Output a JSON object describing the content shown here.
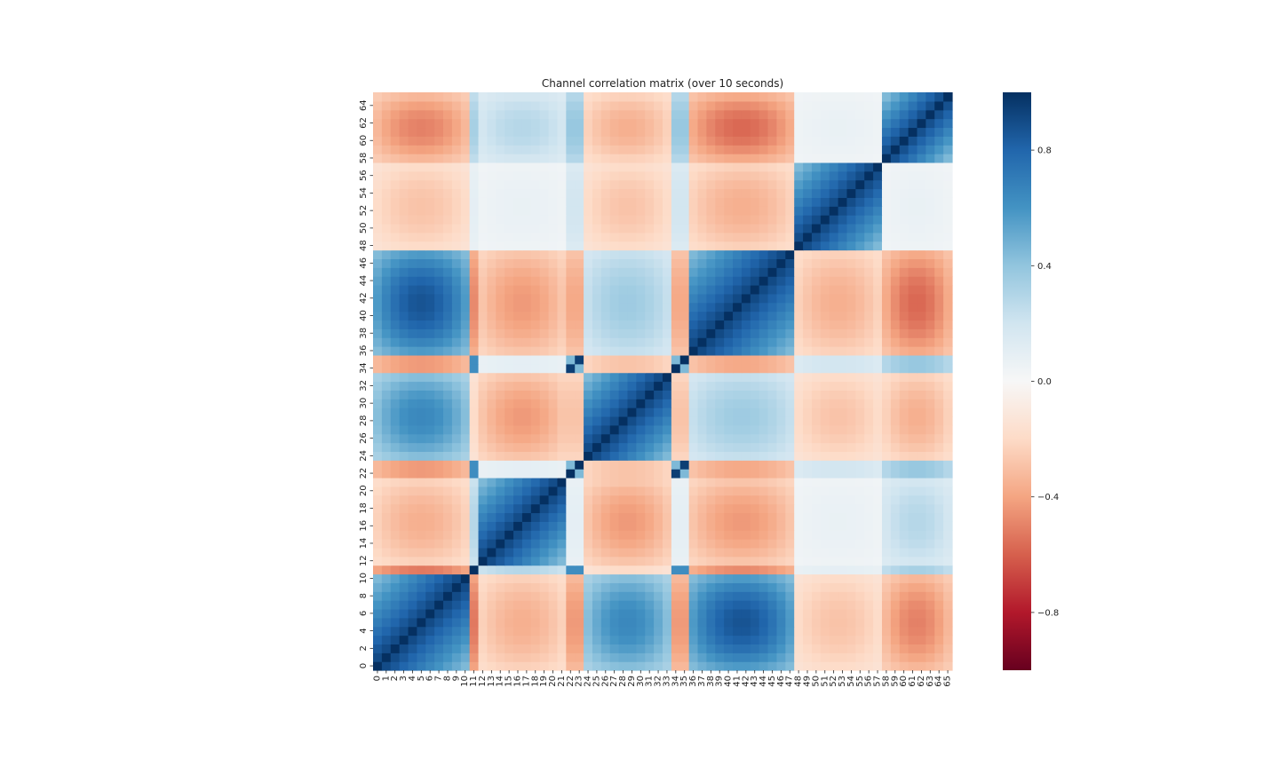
{
  "chart_data": {
    "type": "heatmap",
    "title": "Channel correlation matrix (over 10 seconds)",
    "xlabel": "",
    "ylabel": "",
    "n": 66,
    "x_tick_labels": [
      "0",
      "1",
      "2",
      "3",
      "4",
      "5",
      "6",
      "7",
      "8",
      "9",
      "10",
      "11",
      "12",
      "13",
      "14",
      "15",
      "16",
      "17",
      "18",
      "19",
      "20",
      "21",
      "22",
      "23",
      "24",
      "25",
      "26",
      "27",
      "28",
      "29",
      "30",
      "31",
      "32",
      "33",
      "34",
      "35",
      "36",
      "37",
      "38",
      "39",
      "40",
      "41",
      "42",
      "43",
      "44",
      "45",
      "46",
      "47",
      "48",
      "49",
      "50",
      "51",
      "52",
      "53",
      "54",
      "55",
      "56",
      "57",
      "58",
      "59",
      "60",
      "61",
      "62",
      "63",
      "64",
      "65"
    ],
    "y_tick_labels": [
      "0",
      "2",
      "4",
      "6",
      "8",
      "10",
      "12",
      "14",
      "16",
      "18",
      "20",
      "22",
      "24",
      "26",
      "28",
      "30",
      "32",
      "34",
      "36",
      "38",
      "40",
      "42",
      "44",
      "46",
      "48",
      "50",
      "52",
      "54",
      "56",
      "58",
      "60",
      "62",
      "64"
    ],
    "y_tick_values": [
      0,
      2,
      4,
      6,
      8,
      10,
      12,
      14,
      16,
      18,
      20,
      22,
      24,
      26,
      28,
      30,
      32,
      34,
      36,
      38,
      40,
      42,
      44,
      46,
      48,
      50,
      52,
      54,
      56,
      58,
      60,
      62,
      64
    ],
    "value_range": [
      -1,
      1
    ],
    "colormap": "RdBu",
    "colorbar": {
      "ticks": [
        -0.8,
        -0.4,
        0.0,
        0.4,
        0.8
      ],
      "tick_labels": [
        "−0.8",
        "−0.4",
        "0.0",
        "0.4",
        "0.8"
      ]
    },
    "channel_groups": [
      {
        "channels": [
          0,
          10
        ],
        "group": 0
      },
      {
        "channels": [
          11,
          11
        ],
        "group": 1
      },
      {
        "channels": [
          12,
          21
        ],
        "group": 2
      },
      {
        "channels": [
          22,
          23
        ],
        "group": 3
      },
      {
        "channels": [
          24,
          33
        ],
        "group": 4
      },
      {
        "channels": [
          34,
          35
        ],
        "group": 3
      },
      {
        "channels": [
          36,
          47
        ],
        "group": 5
      },
      {
        "channels": [
          48,
          57
        ],
        "group": 6
      },
      {
        "channels": [
          58,
          65
        ],
        "group": 7
      }
    ],
    "within_group_correlation": {
      "near": 0.95,
      "far": 0.45
    },
    "between_group_correlation": [
      [
        1.0,
        -0.55,
        -0.25,
        -0.45,
        0.45,
        0.6,
        -0.2,
        -0.35
      ],
      [
        -0.55,
        1.0,
        0.3,
        0.85,
        -0.2,
        -0.5,
        0.1,
        0.35
      ],
      [
        -0.25,
        0.3,
        1.0,
        0.1,
        -0.3,
        -0.3,
        0.05,
        0.2
      ],
      [
        -0.45,
        0.85,
        0.1,
        1.0,
        -0.3,
        -0.4,
        0.2,
        0.4
      ],
      [
        0.45,
        -0.2,
        -0.3,
        -0.3,
        1.0,
        0.25,
        -0.2,
        -0.25
      ],
      [
        0.6,
        -0.5,
        -0.3,
        -0.4,
        0.25,
        1.0,
        -0.25,
        -0.4
      ],
      [
        -0.2,
        0.1,
        0.05,
        0.2,
        -0.2,
        -0.25,
        1.0,
        0.05
      ],
      [
        -0.35,
        0.35,
        0.2,
        0.4,
        -0.25,
        -0.4,
        0.05,
        1.0
      ]
    ]
  }
}
